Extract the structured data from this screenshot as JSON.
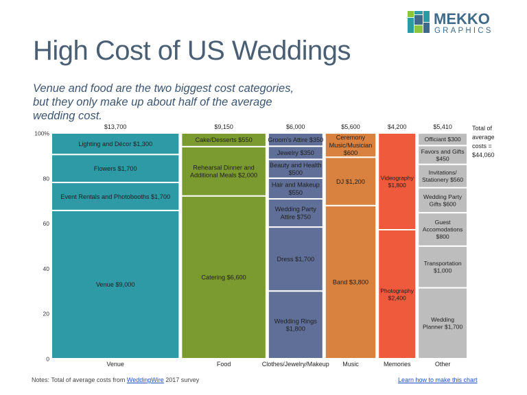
{
  "brand": {
    "line1": "MEKKO",
    "line2": "GRAPHICS",
    "color": "#3f6a8a",
    "accent": "#8cc63f"
  },
  "title": "High Cost of US Weddings",
  "subtitle": "Venue and food are the two biggest cost categories, but they only make up about half of the average wedding cost.",
  "notes": {
    "prefix": "Notes: Total of average costs from ",
    "link": "WeddingWire",
    "suffix": " 2017 survey"
  },
  "learn_link": "Learn how to make this chart",
  "chart_data": {
    "type": "marimekko",
    "total_label": [
      "Total of",
      "average",
      "costs =",
      "$44,060"
    ],
    "y_ticks": [
      "0",
      "20",
      "40",
      "60",
      "80",
      "100%"
    ],
    "ylim": [
      0,
      100
    ],
    "grid": false,
    "columns": [
      {
        "name": "Venue",
        "total": 13700,
        "total_label": "$13,700",
        "color": "#2e9aa6",
        "segments": [
          {
            "label": [
              "Venue $9,000"
            ],
            "value": 9000
          },
          {
            "label": [
              "Event Rentals and Photobooths $1,700"
            ],
            "value": 1700
          },
          {
            "label": [
              "Flowers $1,700"
            ],
            "value": 1700
          },
          {
            "label": [
              "Lighting and Décor $1,300"
            ],
            "value": 1300
          }
        ]
      },
      {
        "name": "Food",
        "total": 9150,
        "total_label": "$9,150",
        "color": "#7b9a2f",
        "segments": [
          {
            "label": [
              "Catering $6,600"
            ],
            "value": 6600
          },
          {
            "label": [
              "Rehearsal Dinner and",
              "Additional Meals $2,000"
            ],
            "value": 2000
          },
          {
            "label": [
              "Cake/Desserts $550"
            ],
            "value": 550
          }
        ]
      },
      {
        "name": "Clothes/Jewelry/Makeup",
        "total": 6000,
        "total_label": "$6,000",
        "color": "#5f6f98",
        "segments": [
          {
            "label": [
              "Wedding Rings",
              "$1,800"
            ],
            "value": 1800
          },
          {
            "label": [
              "Dress $1,700"
            ],
            "value": 1700
          },
          {
            "label": [
              "Wedding Party",
              "Attire $750"
            ],
            "value": 750
          },
          {
            "label": [
              "Hair and Makeup",
              "$550"
            ],
            "value": 550
          },
          {
            "label": [
              "Beauty and Health",
              "$500"
            ],
            "value": 500
          },
          {
            "label": [
              "Jewelry $350"
            ],
            "value": 350
          },
          {
            "label": [
              "Groom's Attire $350"
            ],
            "value": 350
          }
        ]
      },
      {
        "name": "Music",
        "total": 5600,
        "total_label": "$5,600",
        "color": "#d9813e",
        "segments": [
          {
            "label": [
              "Band $3,800"
            ],
            "value": 3800
          },
          {
            "label": [
              "DJ $1,200"
            ],
            "value": 1200
          },
          {
            "label": [
              "Ceremony",
              "Music/Musician",
              "$600"
            ],
            "value": 600
          }
        ]
      },
      {
        "name": "Memories",
        "total": 4200,
        "total_label": "$4,200",
        "color": "#ef5a3d",
        "segments": [
          {
            "label": [
              "Photography",
              "$2,400"
            ],
            "value": 2400
          },
          {
            "label": [
              "Videography",
              "$1,800"
            ],
            "value": 1800
          }
        ]
      },
      {
        "name": "Other",
        "total": 5410,
        "total_label": "$5,410",
        "color": "#bdbdbd",
        "segments": [
          {
            "label": [
              "Wedding",
              "Planner $1,700"
            ],
            "value": 1700
          },
          {
            "label": [
              "Transportation",
              "$1,000"
            ],
            "value": 1000
          },
          {
            "label": [
              "Guest",
              "Accomodations",
              "$800"
            ],
            "value": 800
          },
          {
            "label": [
              "Wedding Party",
              "Gifts $600"
            ],
            "value": 600
          },
          {
            "label": [
              "Invitations/",
              "Stationery $560"
            ],
            "value": 560
          },
          {
            "label": [
              "Favors and Gifts",
              "$450"
            ],
            "value": 450
          },
          {
            "label": [
              "Officiant $300"
            ],
            "value": 300
          }
        ]
      }
    ]
  }
}
